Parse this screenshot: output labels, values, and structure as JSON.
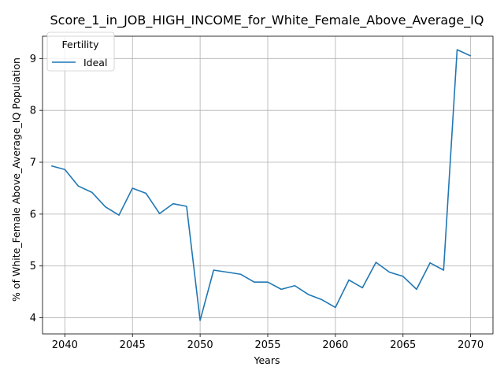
{
  "chart_data": {
    "type": "line",
    "title": "Score_1_in_JOB_HIGH_INCOME_for_White_Female_Above_Average_IQ",
    "xlabel": "Years",
    "ylabel": "% of White_Female Above_Average_IQ Population",
    "xlim": [
      2038.35,
      2071.65
    ],
    "ylim": [
      3.69,
      9.43
    ],
    "xticks": [
      2040,
      2045,
      2050,
      2055,
      2060,
      2065,
      2070
    ],
    "yticks": [
      4,
      5,
      6,
      7,
      8,
      9
    ],
    "grid": true,
    "legend": {
      "title": "Fertility",
      "placement": "top-left"
    },
    "series": [
      {
        "name": "Ideal",
        "color": "#1f77b4",
        "x": [
          2039,
          2040,
          2041,
          2042,
          2043,
          2044,
          2045,
          2046,
          2047,
          2048,
          2049,
          2050,
          2051,
          2052,
          2053,
          2054,
          2055,
          2056,
          2057,
          2058,
          2059,
          2060,
          2061,
          2062,
          2063,
          2064,
          2065,
          2066,
          2067,
          2068,
          2069,
          2070
        ],
        "values": [
          6.93,
          6.86,
          6.54,
          6.42,
          6.14,
          5.98,
          6.5,
          6.4,
          6.01,
          6.2,
          6.15,
          3.95,
          4.92,
          4.88,
          4.84,
          4.69,
          4.69,
          4.55,
          4.62,
          4.45,
          4.35,
          4.2,
          4.73,
          4.58,
          5.07,
          4.88,
          4.8,
          4.55,
          5.06,
          4.92,
          9.17,
          9.05
        ]
      }
    ]
  }
}
